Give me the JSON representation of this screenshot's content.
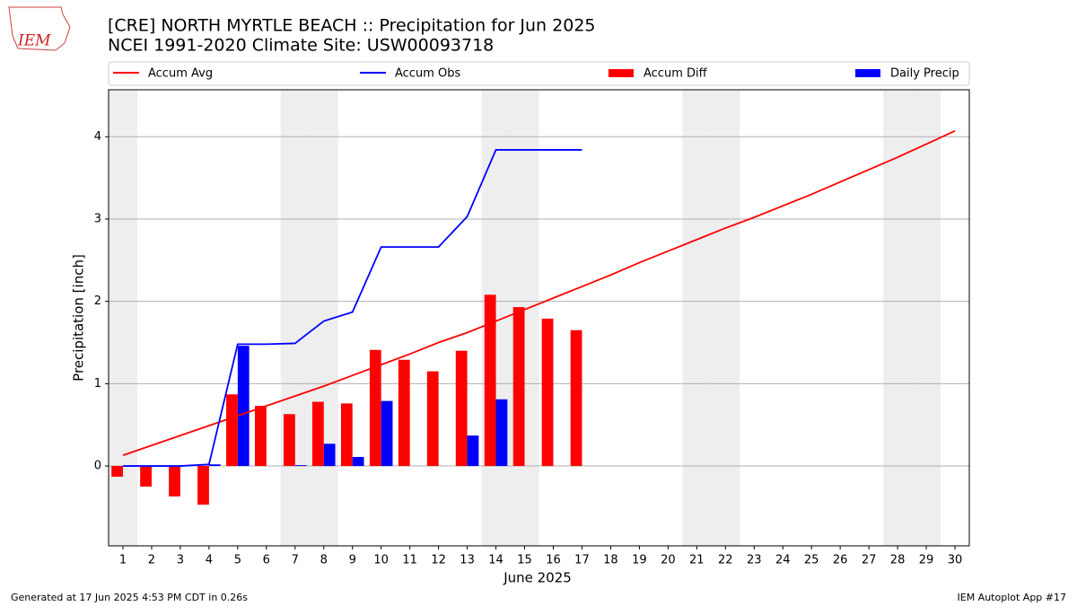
{
  "chart_data": {
    "type": "bar",
    "title": "[CRE] NORTH MYRTLE BEACH :: Precipitation for Jun 2025",
    "subtitle": "NCEI 1991-2020 Climate Site: USW00093718",
    "logo": "IEM",
    "xlabel": "June 2025",
    "ylabel": "Precipitation [inch]",
    "x": [
      1,
      2,
      3,
      4,
      5,
      6,
      7,
      8,
      9,
      10,
      11,
      12,
      13,
      14,
      15,
      16,
      17,
      18,
      19,
      20,
      21,
      22,
      23,
      24,
      25,
      26,
      27,
      28,
      29,
      30
    ],
    "xlim": [
      0.5,
      30.5
    ],
    "xticks": [
      1,
      2,
      3,
      4,
      5,
      6,
      7,
      8,
      9,
      10,
      11,
      12,
      13,
      14,
      15,
      16,
      17,
      18,
      19,
      20,
      21,
      22,
      23,
      24,
      25,
      26,
      27,
      28,
      29,
      30
    ],
    "ylim": [
      -0.97,
      4.57
    ],
    "yticks": [
      0,
      1,
      2,
      3,
      4
    ],
    "grid": true,
    "series": [
      {
        "name": "Accum Avg",
        "type": "line",
        "color": "#ff0000",
        "values": [
          0.13,
          0.25,
          0.37,
          0.49,
          0.61,
          0.73,
          0.85,
          0.97,
          1.1,
          1.23,
          1.36,
          1.5,
          1.62,
          1.76,
          1.9,
          2.04,
          2.18,
          2.32,
          2.47,
          2.61,
          2.75,
          2.89,
          3.02,
          3.16,
          3.3,
          3.45,
          3.6,
          3.75,
          3.91,
          4.07
        ]
      },
      {
        "name": "Accum Obs",
        "type": "line",
        "color": "#0000ff",
        "values": [
          0,
          0,
          0,
          0.02,
          1.48,
          1.48,
          1.49,
          1.76,
          1.87,
          2.66,
          2.66,
          2.66,
          3.03,
          3.84,
          3.84,
          3.84,
          3.84,
          null,
          null,
          null,
          null,
          null,
          null,
          null,
          null,
          null,
          null,
          null,
          null,
          null
        ]
      },
      {
        "name": "Accum Diff",
        "type": "bar",
        "color": "#ff0000",
        "values": [
          -0.13,
          -0.25,
          -0.37,
          -0.47,
          0.87,
          0.73,
          0.63,
          0.78,
          0.76,
          1.41,
          1.29,
          1.15,
          1.4,
          2.08,
          1.93,
          1.79,
          1.65,
          null,
          null,
          null,
          null,
          null,
          null,
          null,
          null,
          null,
          null,
          null,
          null,
          null
        ]
      },
      {
        "name": "Daily Precip",
        "type": "bar",
        "color": "#0000ff",
        "values": [
          0,
          0,
          0,
          0.02,
          1.46,
          0,
          0.01,
          0.27,
          0.11,
          0.79,
          0,
          0,
          0.37,
          0.81,
          0,
          0,
          0,
          null,
          null,
          null,
          null,
          null,
          null,
          null,
          null,
          null,
          null,
          null,
          null,
          null
        ]
      }
    ],
    "footer_left": "Generated at 17 Jun 2025 4:53 PM CDT in 0.26s",
    "footer_right": "IEM Autoplot App #17"
  }
}
